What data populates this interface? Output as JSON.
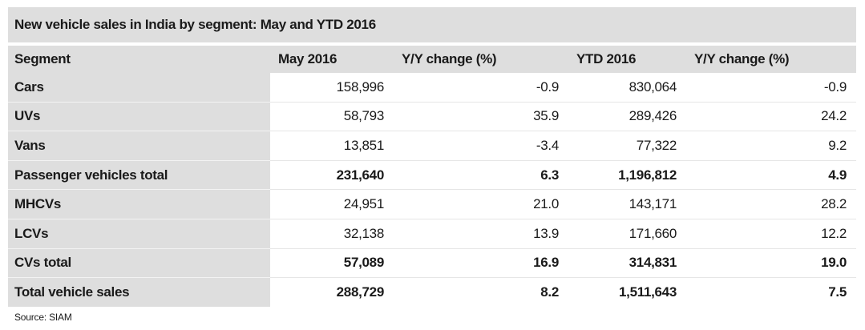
{
  "table": {
    "title": "New vehicle sales in India by segment: May and YTD 2016",
    "headers": [
      "Segment",
      "May 2016",
      "Y/Y change (%)",
      "YTD 2016",
      "Y/Y change (%)"
    ],
    "rows": [
      {
        "segment": "Cars",
        "may": "158,996",
        "may_yoy": "-0.9",
        "ytd": "830,064",
        "ytd_yoy": "-0.9",
        "bold": false
      },
      {
        "segment": "UVs",
        "may": "58,793",
        "may_yoy": "35.9",
        "ytd": "289,426",
        "ytd_yoy": "24.2",
        "bold": false
      },
      {
        "segment": "Vans",
        "may": "13,851",
        "may_yoy": "-3.4",
        "ytd": "77,322",
        "ytd_yoy": "9.2",
        "bold": false
      },
      {
        "segment": "Passenger vehicles total",
        "may": "231,640",
        "may_yoy": "6.3",
        "ytd": "1,196,812",
        "ytd_yoy": "4.9",
        "bold": true
      },
      {
        "segment": "MHCVs",
        "may": "24,951",
        "may_yoy": "21.0",
        "ytd": "143,171",
        "ytd_yoy": "28.2",
        "bold": false
      },
      {
        "segment": "LCVs",
        "may": "32,138",
        "may_yoy": "13.9",
        "ytd": "171,660",
        "ytd_yoy": "12.2",
        "bold": false
      },
      {
        "segment": "CVs total",
        "may": "57,089",
        "may_yoy": "16.9",
        "ytd": "314,831",
        "ytd_yoy": "19.0",
        "bold": true
      },
      {
        "segment": "Total vehicle sales",
        "may": "288,729",
        "may_yoy": "8.2",
        "ytd": "1,511,643",
        "ytd_yoy": "7.5",
        "bold": true
      }
    ],
    "source": "Source: SIAM"
  }
}
